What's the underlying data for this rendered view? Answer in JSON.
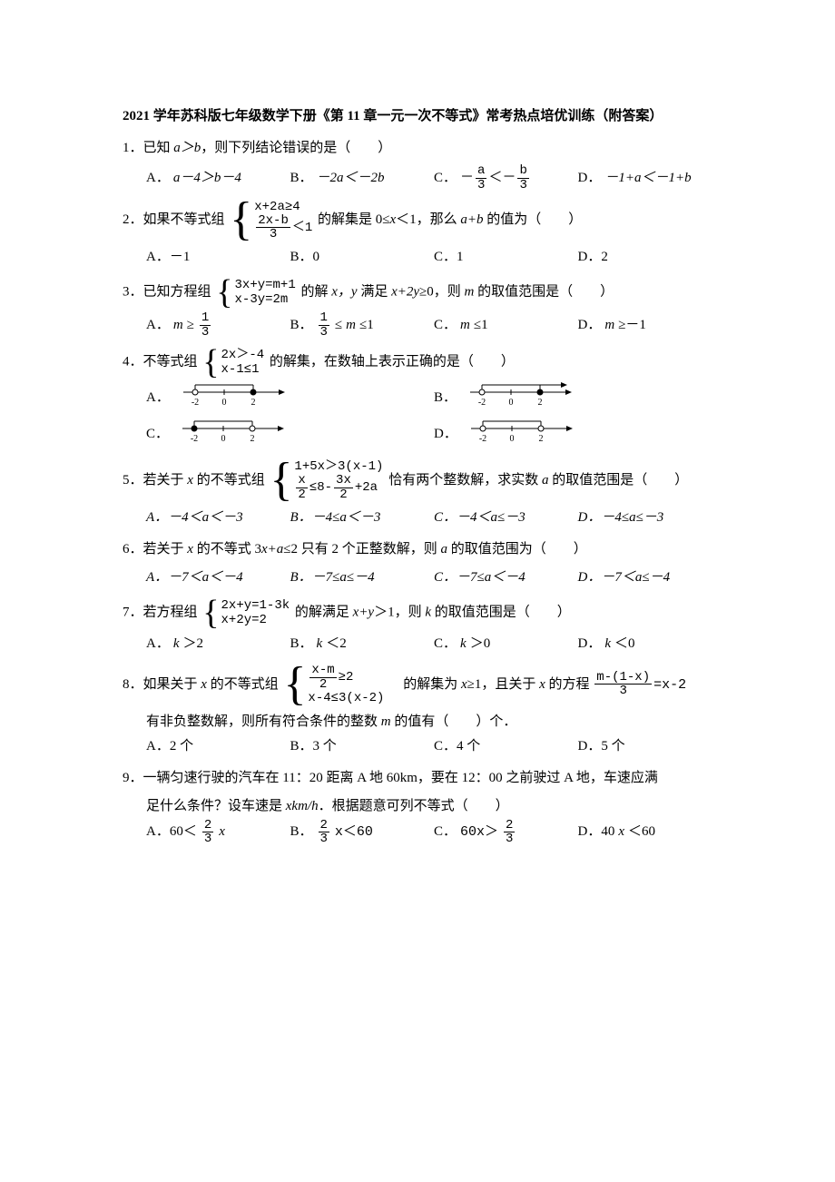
{
  "title": "2021 学年苏科版七年级数学下册《第 11 章一元一次不等式》常考热点培优训练（附答案）",
  "q1": {
    "stem_pre": "1．已知 ",
    "stem_mid": "a＞b",
    "stem_post": "，则下列结论错误的是（　　）",
    "A": "A．",
    "A_txt": "a－4＞b－4",
    "B": "B．",
    "B_txt": "－2a＜－2b",
    "C": "C．",
    "C_frac1_num": "a",
    "C_frac1_den": "3",
    "C_frac2_num": "b",
    "C_frac2_den": "3",
    "D": "D．",
    "D_txt": "－1+a＜－1+b"
  },
  "q2": {
    "stem_pre": "2．如果不等式组",
    "sys1": "x+2a≥4",
    "sys2_num": "2x-b",
    "sys2_den": "3",
    "sys2_op": "＜1",
    "stem_mid": "的解集是 0≤",
    "stem_x": "x",
    "stem_mid2": "＜1，那么 ",
    "stem_ab": "a+b",
    "stem_post": " 的值为（　　）",
    "A": "A．－1",
    "B": "B．0",
    "C": "C．1",
    "D": "D．2"
  },
  "q3": {
    "stem_pre": "3．已知方程组",
    "sys1": "3x+y=m+1",
    "sys2": "x-3y=2m",
    "stem_mid": "的解 ",
    "xy": "x，y",
    "stem_mid2": " 满足 ",
    "cond": "x+2y",
    "stem_mid3": "≥0，则 ",
    "m": "m",
    "stem_post": " 的取值范围是（　　）",
    "A": "A．",
    "A_m": "m",
    "A_op": "≥",
    "A_num": "1",
    "A_den": "3",
    "B": "B．",
    "B_num": "1",
    "B_den": "3",
    "B_op": "≤",
    "B_m": "m",
    "B_op2": "≤1",
    "C": "C．",
    "C_m": "m",
    "C_txt": "≤1",
    "D": "D．",
    "D_m": "m",
    "D_txt": "≥－1"
  },
  "q4": {
    "stem_pre": "4．不等式组",
    "sys1": "2x＞-4",
    "sys2": "x-1≤1",
    "stem_post": "的解集，在数轴上表示正确的是（　　）",
    "A": "A．",
    "B": "B．",
    "C": "C．",
    "D": "D．",
    "ticks": [
      "-2",
      "0",
      "2"
    ],
    "nl": {
      "line_color": "#000000",
      "open_fill": "#ffffff",
      "closed_fill": "#000000",
      "width": 120,
      "height": 28
    }
  },
  "q5": {
    "stem_pre": "5．若关于 ",
    "x": "x",
    "stem_mid": " 的不等式组",
    "sys1": "1+5x＞3(x-1)",
    "sys2a_num": "x",
    "sys2a_den": "2",
    "sys2_op": "≤8-",
    "sys2b_num": "3x",
    "sys2b_den": "2",
    "sys2_post": "+2a",
    "stem_mid2": "恰有两个整数解，求实数 ",
    "a": "a",
    "stem_post": " 的取值范围是（　　）",
    "A": "A．－4＜a＜－3",
    "B": "B．－4≤a＜－3",
    "C": "C．－4＜a≤－3",
    "D": "D．－4≤a≤－3"
  },
  "q6": {
    "stem_pre": "6．若关于 ",
    "x": "x",
    "stem_mid": " 的不等式 3",
    "x2": "x+a",
    "stem_mid2": "≤2 只有 2 个正整数解，则 ",
    "a": "a",
    "stem_post": " 的取值范围为（　　）",
    "A": "A．－7＜a＜－4",
    "B": "B．－7≤a≤－4",
    "C": "C．－7≤a＜－4",
    "D": "D．－7＜a≤－4"
  },
  "q7": {
    "stem_pre": "7．若方程组",
    "sys1": "2x+y=1-3k",
    "sys2": "x+2y=2",
    "stem_mid": "的解满足 ",
    "xy": "x+y",
    "stem_mid2": "＞1，则 ",
    "k": "k",
    "stem_post": " 的取值范围是（　　）",
    "A": "A．",
    "A_k": "k",
    "A_t": "＞2",
    "B": "B．",
    "B_k": "k",
    "B_t": "＜2",
    "C": "C．",
    "C_k": "k",
    "C_t": "＞0",
    "D": "D．",
    "D_k": "k",
    "D_t": "＜0"
  },
  "q8": {
    "stem_pre": "8．如果关于 ",
    "x": "x",
    "stem_mid": " 的不等式组",
    "sys1_num": "x-m",
    "sys1_den": "2",
    "sys1_op": "≥2",
    "sys2": "x-4≤3(x-2)",
    "stem_mid2": "　的解集为 ",
    "x2": "x",
    "stem_mid3": "≥1，且关于 ",
    "x3": "x",
    "stem_mid4": " 的方程",
    "eq_num": "m-(1-x)",
    "eq_den": "3",
    "eq_op": "=x-2",
    "line2_pre": "有非负整数解，则所有符合条件的整数 ",
    "m": "m",
    "line2_post": " 的值有（　　）个．",
    "A": "A．2 个",
    "B": "B．3 个",
    "C": "C．4 个",
    "D": "D．5 个"
  },
  "q9": {
    "stem": "9．一辆匀速行驶的汽车在 11：20 距离 A 地 60km，要在 12：00 之前驶过 A 地，车速应满",
    "line2_pre": "足什么条件？设车速是 ",
    "xkm": "xkm/h",
    "line2_post": "．根据题意可列不等式（　　）",
    "A": "A．60＜",
    "A_num": "2",
    "A_den": "3",
    "A_x": "x",
    "B": "B．",
    "B_num": "2",
    "B_den": "3",
    "B_x": "x＜60",
    "C": "C．",
    "C_pre": "60x＞",
    "C_num": "2",
    "C_den": "3",
    "D": "D．40",
    "D_x": "x",
    "D_post": "＜60"
  }
}
